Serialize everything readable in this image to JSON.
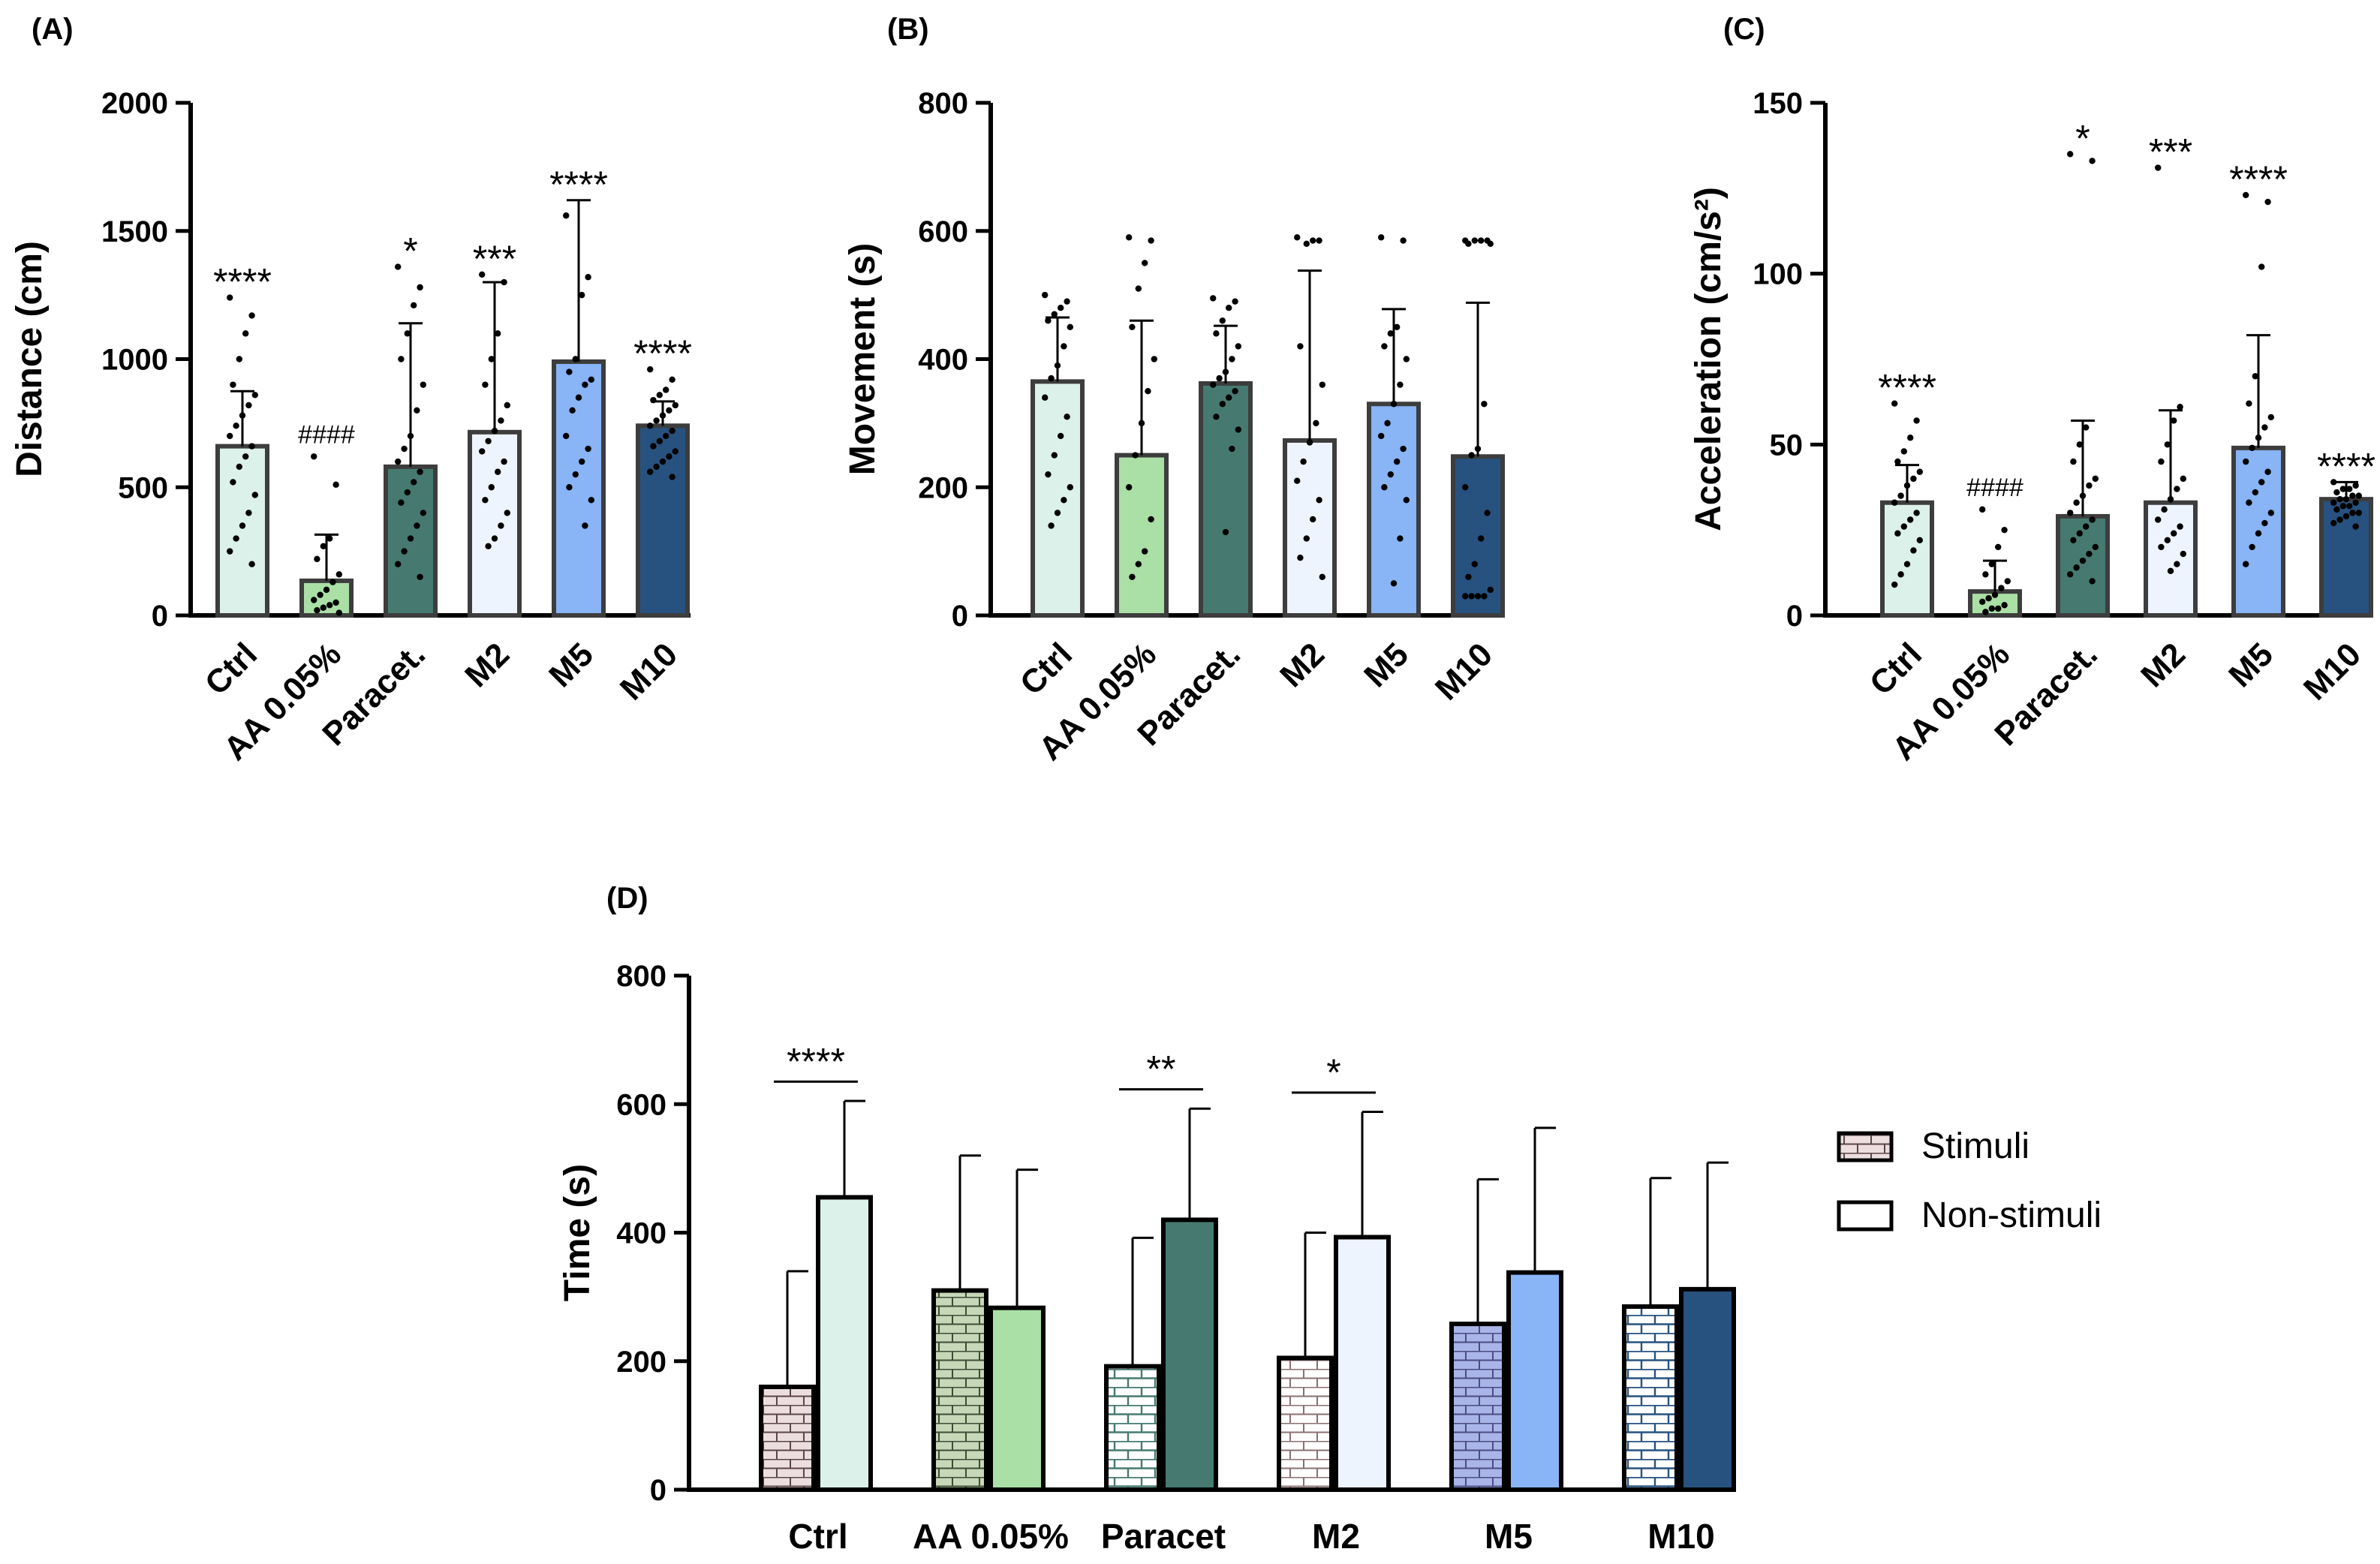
{
  "figure": {
    "colors": {
      "Ctrl": "#dcf1ea",
      "AA 0.05%": "#aadfa6",
      "Paracet.": "#467a70",
      "M2": "#eef4fe",
      "M5": "#89b4f5",
      "M10": "#27527f",
      "axis": "#000000"
    }
  },
  "chart_data": [
    {
      "id": "A",
      "panel_label": "(A)",
      "type": "bar",
      "ylabel": "Distance (cm)",
      "ylim": [
        0,
        2000
      ],
      "yticks": [
        0,
        500,
        1000,
        1500,
        2000
      ],
      "categories": [
        "Ctrl",
        "AA 0.05%",
        "Paracet.",
        "M2",
        "M5",
        "M10"
      ],
      "values": [
        660,
        135,
        580,
        715,
        990,
        740
      ],
      "sd": [
        215,
        180,
        560,
        585,
        630,
        95
      ],
      "significance": [
        "****",
        "####",
        "*",
        "***",
        "****",
        "****"
      ],
      "points": [
        [
          1240,
          1170,
          1100,
          1000,
          900,
          860,
          820,
          780,
          740,
          700,
          660,
          620,
          580,
          520,
          470,
          400,
          350,
          300,
          250,
          200
        ],
        [
          620,
          510,
          300,
          270,
          220,
          160,
          130,
          100,
          80,
          60,
          50,
          40,
          30,
          20,
          10
        ],
        [
          1360,
          1280,
          1210,
          1100,
          1000,
          900,
          800,
          700,
          650,
          600,
          560,
          520,
          480,
          440,
          400,
          350,
          300,
          250,
          200,
          150
        ],
        [
          1330,
          1300,
          1100,
          1000,
          900,
          820,
          760,
          720,
          680,
          640,
          600,
          560,
          500,
          450,
          400,
          350,
          300,
          270
        ],
        [
          1560,
          1320,
          1250,
          1000,
          950,
          920,
          900,
          850,
          800,
          700,
          650,
          600,
          550,
          500,
          450,
          350
        ],
        [
          960,
          920,
          880,
          860,
          840,
          820,
          800,
          780,
          760,
          740,
          720,
          700,
          680,
          660,
          640,
          620,
          600,
          580,
          560,
          540
        ]
      ]
    },
    {
      "id": "B",
      "panel_label": "(B)",
      "type": "bar",
      "ylabel": "Movement (s)",
      "ylim": [
        0,
        800
      ],
      "yticks": [
        0,
        200,
        400,
        600,
        800
      ],
      "categories": [
        "Ctrl",
        "AA 0.05%",
        "Paracet.",
        "M2",
        "M5",
        "M10"
      ],
      "values": [
        365,
        250,
        362,
        273,
        330,
        248
      ],
      "sd": [
        100,
        210,
        90,
        265,
        148,
        240
      ],
      "significance": [
        "",
        "",
        "",
        "",
        "",
        ""
      ],
      "points": [
        [
          500,
          490,
          480,
          470,
          460,
          450,
          420,
          390,
          370,
          340,
          310,
          280,
          250,
          220,
          200,
          180,
          160,
          140
        ],
        [
          590,
          585,
          550,
          510,
          450,
          400,
          350,
          300,
          250,
          200,
          150,
          100,
          80,
          60
        ],
        [
          495,
          490,
          480,
          460,
          440,
          420,
          400,
          380,
          370,
          360,
          350,
          340,
          330,
          310,
          290,
          260,
          130
        ],
        [
          590,
          585,
          585,
          580,
          420,
          360,
          300,
          270,
          240,
          210,
          180,
          150,
          120,
          90,
          60
        ],
        [
          590,
          585,
          450,
          440,
          420,
          400,
          360,
          330,
          300,
          280,
          260,
          240,
          220,
          200,
          180,
          120,
          50
        ],
        [
          585,
          585,
          585,
          585,
          580,
          580,
          330,
          260,
          250,
          200,
          160,
          120,
          80,
          60,
          40,
          30,
          30,
          30,
          30
        ]
      ]
    },
    {
      "id": "C",
      "panel_label": "(C)",
      "type": "bar",
      "ylabel": "Acceleration (cm/s²)",
      "ylim": [
        0,
        150
      ],
      "yticks": [
        0,
        50,
        100,
        150
      ],
      "categories": [
        "Ctrl",
        "AA 0.05%",
        "Paracet.",
        "M2",
        "M5",
        "M10"
      ],
      "values": [
        33,
        7,
        29,
        33,
        49,
        34
      ],
      "sd": [
        11,
        9,
        28,
        27,
        33,
        5
      ],
      "significance": [
        "****",
        "####",
        "*",
        "***",
        "****",
        "****"
      ],
      "points": [
        [
          62,
          57,
          52,
          48,
          45,
          42,
          40,
          38,
          35,
          33,
          30,
          28,
          26,
          24,
          22,
          19,
          15,
          12,
          9
        ],
        [
          31,
          25,
          20,
          15,
          12,
          10,
          8,
          6,
          5,
          4,
          3,
          2,
          2,
          1
        ],
        [
          135,
          133,
          55,
          50,
          45,
          40,
          38,
          35,
          33,
          30,
          28,
          26,
          24,
          22,
          20,
          18,
          16,
          14,
          12,
          10
        ],
        [
          131,
          61,
          57,
          50,
          45,
          40,
          37,
          34,
          31,
          28,
          26,
          24,
          22,
          20,
          18,
          15,
          13
        ],
        [
          123,
          121,
          102,
          70,
          62,
          58,
          55,
          52,
          49,
          45,
          42,
          39,
          36,
          33,
          30,
          27,
          24,
          20,
          15
        ],
        [
          39,
          38,
          37,
          37,
          36,
          35,
          35,
          34,
          34,
          33,
          33,
          32,
          32,
          31,
          30,
          30,
          29,
          28,
          27,
          26
        ]
      ]
    },
    {
      "id": "D",
      "panel_label": "(D)",
      "type": "bar",
      "ylabel": "Time (s)",
      "ylim": [
        0,
        800
      ],
      "yticks": [
        0,
        200,
        400,
        600,
        800
      ],
      "categories": [
        "Ctrl",
        "AA 0.05%",
        "Paracet",
        "M2",
        "M5",
        "M10"
      ],
      "series": [
        {
          "name": "Stimuli",
          "values": [
            160,
            310,
            192,
            205,
            258,
            285
          ],
          "sd": [
            180,
            210,
            200,
            195,
            225,
            200
          ]
        },
        {
          "name": "Non-stimuli",
          "values": [
            455,
            283,
            420,
            393,
            338,
            312
          ],
          "sd": [
            150,
            215,
            173,
            195,
            225,
            197
          ]
        }
      ],
      "significance": [
        "****",
        "",
        "**",
        "*",
        "",
        ""
      ],
      "legend_position": "right"
    }
  ]
}
